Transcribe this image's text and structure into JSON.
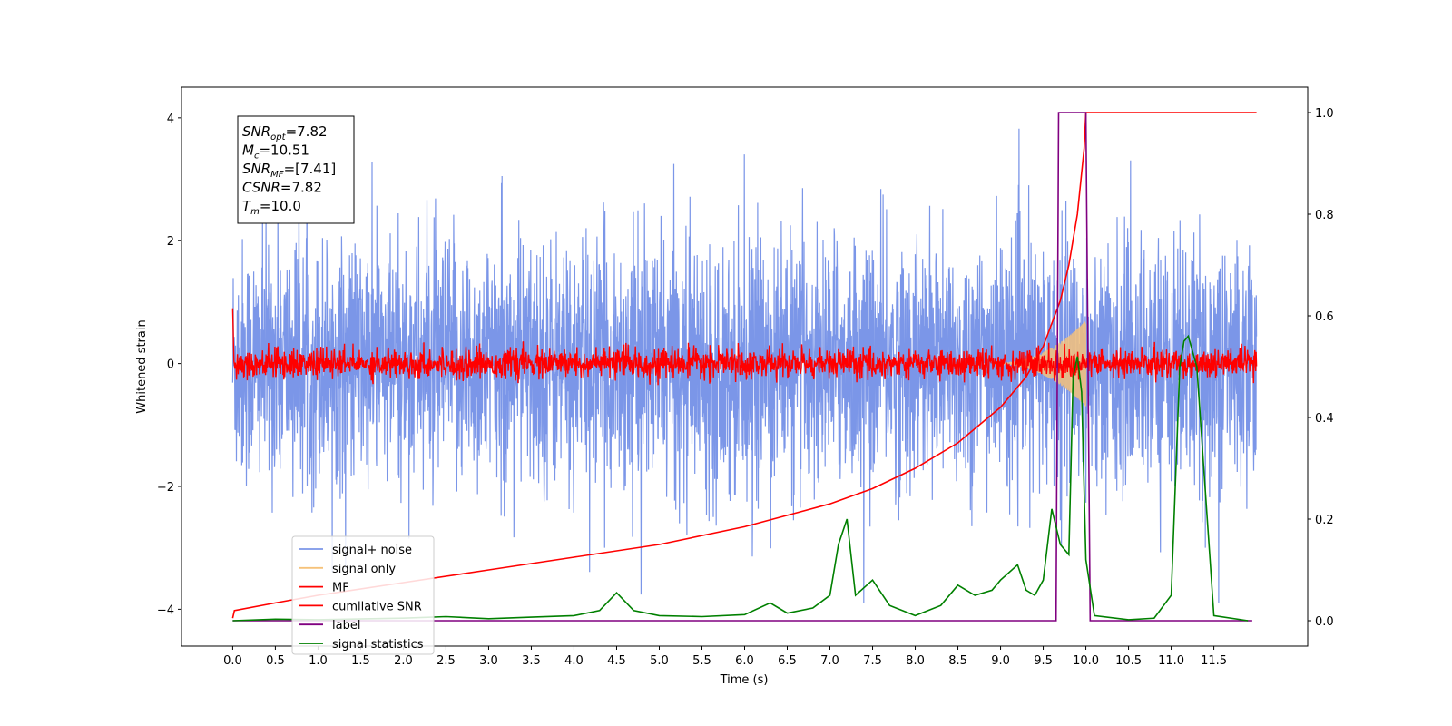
{
  "chart_data": {
    "type": "line",
    "xlabel": "Time (s)",
    "ylabel": "Whitened strain",
    "xlim": [
      -0.6,
      12.6
    ],
    "ylim": [
      -4.6,
      4.5
    ],
    "y2lim": [
      -0.05,
      1.05
    ],
    "xticks": [
      "0.0",
      "0.5",
      "1.0",
      "1.5",
      "2.0",
      "2.5",
      "3.0",
      "3.5",
      "4.0",
      "4.5",
      "5.0",
      "5.5",
      "6.0",
      "6.5",
      "7.0",
      "7.5",
      "8.0",
      "8.5",
      "9.0",
      "9.5",
      "10.0",
      "10.5",
      "11.0",
      "11.5"
    ],
    "yticks": [
      "−4",
      "−2",
      "0",
      "2",
      "4"
    ],
    "y2ticks": [
      "0.0",
      "0.2",
      "0.4",
      "0.6",
      "0.8",
      "1.0"
    ],
    "annotation": {
      "lines": [
        {
          "sym": "SNR",
          "sub": "opt",
          "val": "=7.82"
        },
        {
          "sym": "M",
          "sub": "c",
          "val": "=10.51"
        },
        {
          "sym": "SNR",
          "sub": "MF",
          "val": "=[7.41]"
        },
        {
          "sym": "CSNR",
          "sub": "",
          "val": "=7.82"
        },
        {
          "sym": "T",
          "sub": "m",
          "val": "=10.0"
        }
      ]
    },
    "legend": {
      "position": "lower-left",
      "entries": [
        {
          "label": "signal+ noise",
          "color": "#7b96e8"
        },
        {
          "label": "signal only",
          "color": "#f6c27a"
        },
        {
          "label": "MF",
          "color": "#ff0000"
        },
        {
          "label": "cumilative SNR",
          "color": "#ff0000"
        },
        {
          "label": "label",
          "color": "#800080"
        },
        {
          "label": "signal statistics",
          "color": "#008000"
        }
      ]
    },
    "series": [
      {
        "name": "signal+ noise",
        "color": "#7b96e8",
        "axis": "left",
        "x_range": [
          0.0,
          12.0
        ],
        "description_noise_amplitude": 1.0
      },
      {
        "name": "signal only",
        "color": "#f6c27a",
        "axis": "left",
        "x_range": [
          8.9,
          10.0
        ],
        "envelope_peak": 0.7
      },
      {
        "name": "MF",
        "color": "#ff0000",
        "axis": "left",
        "x_range": [
          0.0,
          12.0
        ],
        "noise_amplitude": 0.12
      },
      {
        "name": "cumilative SNR",
        "color": "#ff0000",
        "axis": "right",
        "x": [
          0.0,
          0.02,
          0.5,
          1.0,
          2.0,
          3.0,
          4.0,
          5.0,
          6.0,
          7.0,
          7.5,
          8.0,
          8.5,
          9.0,
          9.3,
          9.5,
          9.7,
          9.8,
          9.9,
          9.98,
          10.0,
          10.05,
          11.0,
          12.0
        ],
        "y": [
          0.005,
          0.02,
          0.035,
          0.05,
          0.075,
          0.1,
          0.125,
          0.15,
          0.185,
          0.23,
          0.26,
          0.3,
          0.35,
          0.42,
          0.48,
          0.54,
          0.63,
          0.7,
          0.8,
          0.93,
          1.0,
          1.0,
          1.0,
          1.0
        ]
      },
      {
        "name": "label",
        "color": "#800080",
        "axis": "right",
        "x": [
          0.0,
          9.65,
          9.68,
          10.0,
          10.05,
          11.95
        ],
        "y": [
          0.0,
          0.0,
          1.0,
          1.0,
          0.0,
          0.0
        ]
      },
      {
        "name": "signal statistics",
        "color": "#008000",
        "axis": "right",
        "x": [
          0.0,
          0.5,
          1.0,
          2.0,
          2.5,
          3.0,
          3.5,
          4.0,
          4.3,
          4.5,
          4.7,
          5.0,
          5.5,
          6.0,
          6.3,
          6.5,
          6.8,
          7.0,
          7.1,
          7.2,
          7.3,
          7.5,
          7.7,
          8.0,
          8.3,
          8.5,
          8.7,
          8.9,
          9.0,
          9.2,
          9.3,
          9.4,
          9.5,
          9.6,
          9.7,
          9.8,
          9.85,
          9.9,
          9.95,
          10.0,
          10.1,
          10.5,
          10.8,
          11.0,
          11.1,
          11.15,
          11.2,
          11.3,
          11.5,
          11.9
        ],
        "y": [
          0.0,
          0.003,
          0.002,
          0.005,
          0.008,
          0.004,
          0.007,
          0.01,
          0.02,
          0.055,
          0.02,
          0.01,
          0.008,
          0.012,
          0.035,
          0.015,
          0.025,
          0.05,
          0.15,
          0.2,
          0.05,
          0.08,
          0.03,
          0.01,
          0.03,
          0.07,
          0.05,
          0.06,
          0.08,
          0.11,
          0.06,
          0.05,
          0.08,
          0.22,
          0.15,
          0.13,
          0.48,
          0.52,
          0.45,
          0.12,
          0.01,
          0.002,
          0.005,
          0.05,
          0.5,
          0.55,
          0.56,
          0.5,
          0.01,
          0.0
        ]
      }
    ]
  }
}
